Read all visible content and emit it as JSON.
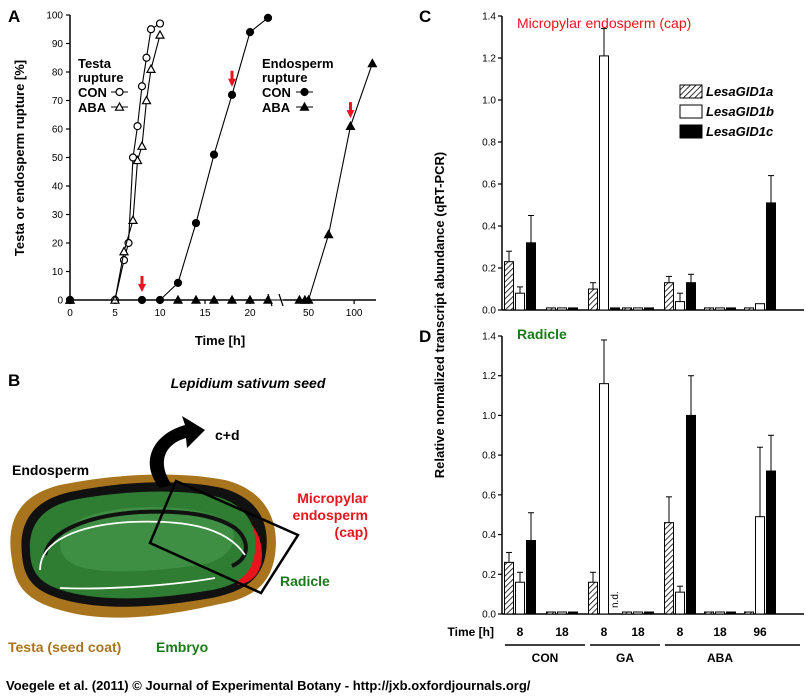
{
  "footer": "Voegele et al. (2011) © Journal of Experimental Botany - http://jxb.oxfordjournals.org/",
  "colors": {
    "red_title": "#e8141e",
    "green_title": "#1a7a1a",
    "testa": "#a8751e",
    "embryo": "#2e7d32",
    "arrow_red": "#e8141e"
  },
  "panel_b": {
    "letter": "B",
    "title": "Lepidium sativum seed",
    "labels": {
      "cd": "c+d",
      "endosperm": "Endosperm",
      "micropylar1": "Micropylar",
      "micropylar2": "endosperm",
      "micropylar3": "(cap)",
      "radicle": "Radicle",
      "testa": "Testa (seed coat)",
      "embryo": "Embryo"
    }
  },
  "chart_data": [
    {
      "panel": "A",
      "type": "line",
      "xlabel": "Time [h]",
      "ylabel": "Testa or endosperm rupture [%]",
      "ylim": [
        0,
        100
      ],
      "yticks": [
        "0",
        "10",
        "20",
        "30",
        "40",
        "50",
        "60",
        "70",
        "80",
        "90",
        "100"
      ],
      "x_segments": [
        {
          "range": [
            0,
            22
          ],
          "ticks": [
            "0",
            "5",
            "10",
            "15",
            "20"
          ],
          "tick_values": [
            0,
            5,
            10,
            15,
            20
          ]
        },
        {
          "range": [
            22,
            124
          ],
          "ticks": [
            "50",
            "100"
          ],
          "tick_values": [
            50,
            100
          ]
        }
      ],
      "legend": {
        "testa_title1": "Testa",
        "testa_title2": "rupture",
        "endo_title1": "Endosperm",
        "endo_title2": "rupture",
        "con": "CON",
        "aba": "ABA"
      },
      "series": [
        {
          "name": "CON",
          "group": "Testa rupture",
          "marker": "circle-open",
          "x": [
            0,
            5,
            6,
            6.5,
            7,
            7.5,
            8,
            8.5,
            9,
            10
          ],
          "y": [
            0,
            0,
            14,
            20,
            50,
            61,
            75,
            85,
            95,
            97
          ]
        },
        {
          "name": "ABA",
          "group": "Testa rupture",
          "marker": "triangle-open",
          "x": [
            0,
            5,
            6,
            7,
            7.5,
            8,
            8.5,
            9,
            10
          ],
          "y": [
            0,
            0,
            17,
            28,
            49,
            54,
            70,
            81,
            93
          ]
        },
        {
          "name": "CON",
          "group": "Endosperm rupture",
          "marker": "circle-filled",
          "x": [
            0,
            8,
            10,
            12,
            14,
            16,
            18,
            20,
            22
          ],
          "y": [
            0,
            0,
            0,
            6,
            27,
            51,
            72,
            94,
            99
          ]
        },
        {
          "name": "ABA",
          "group": "Endosperm rupture",
          "marker": "triangle-filled",
          "x": [
            0,
            12,
            14,
            16,
            18,
            20,
            22,
            40,
            46,
            50,
            72,
            96,
            120
          ],
          "y": [
            0,
            0,
            0,
            0,
            0,
            0,
            0,
            0,
            0,
            0,
            23,
            61,
            83
          ]
        }
      ],
      "red_arrows_x": [
        8,
        18,
        96
      ]
    },
    {
      "panel": "C",
      "type": "bar",
      "title": "Micropylar endosperm (cap)",
      "ylim": [
        0,
        1.4
      ],
      "yticks": [
        "0.0",
        "0.2",
        "0.4",
        "0.6",
        "0.8",
        "1.0",
        "1.2",
        "1.4"
      ],
      "categories": [
        "CON 8",
        "CON 18",
        "GA 8",
        "GA 18",
        "ABA 8",
        "ABA 18",
        "ABA 96"
      ],
      "series": [
        {
          "name": "LesaGID1a",
          "values": [
            0.23,
            0.01,
            0.1,
            0.01,
            0.13,
            0.01,
            0.01
          ],
          "errors": [
            0.05,
            0,
            0.03,
            0,
            0.03,
            0,
            0
          ]
        },
        {
          "name": "LesaGID1b",
          "values": [
            0.08,
            0.01,
            1.21,
            0.01,
            0.04,
            0.01,
            0.03
          ],
          "errors": [
            0.03,
            0,
            0.13,
            0,
            0.04,
            0,
            0
          ]
        },
        {
          "name": "LesaGID1c",
          "values": [
            0.32,
            0.01,
            0.01,
            0.01,
            0.13,
            0.01,
            0.51
          ],
          "errors": [
            0.13,
            0,
            0,
            0,
            0.04,
            0,
            0.13
          ]
        }
      ]
    },
    {
      "panel": "D",
      "type": "bar",
      "title": "Radicle",
      "ylim": [
        0,
        1.4
      ],
      "yticks": [
        "0.0",
        "0.2",
        "0.4",
        "0.6",
        "0.8",
        "1.0",
        "1.2",
        "1.4"
      ],
      "categories": [
        "CON 8",
        "CON 18",
        "GA 8",
        "GA 18",
        "ABA 8",
        "ABA 18",
        "ABA 96"
      ],
      "series": [
        {
          "name": "LesaGID1a",
          "values": [
            0.26,
            0.01,
            0.16,
            0.01,
            0.46,
            0.01,
            0.01
          ],
          "errors": [
            0.05,
            0,
            0.05,
            0,
            0.13,
            0,
            0
          ]
        },
        {
          "name": "LesaGID1b",
          "values": [
            0.16,
            0.01,
            1.16,
            0.01,
            0.11,
            0.01,
            0.49
          ],
          "errors": [
            0.05,
            0,
            0.22,
            0,
            0.03,
            0,
            0.35
          ]
        },
        {
          "name": "LesaGID1c",
          "values": [
            0.37,
            0.01,
            0.0,
            0.01,
            1.0,
            0.01,
            0.72
          ],
          "errors": [
            0.14,
            0,
            0,
            0,
            0.2,
            0,
            0.18
          ]
        }
      ],
      "annotation": "n.d."
    }
  ],
  "shared_bar_axis": {
    "ylabel": "Relative normalized transcript abundance (qRT-PCR)",
    "time_label": "Time [h]",
    "time_ticks": [
      "8",
      "18",
      "8",
      "18",
      "8",
      "18",
      "96"
    ],
    "groups": [
      "CON",
      "GA",
      "ABA"
    ]
  }
}
